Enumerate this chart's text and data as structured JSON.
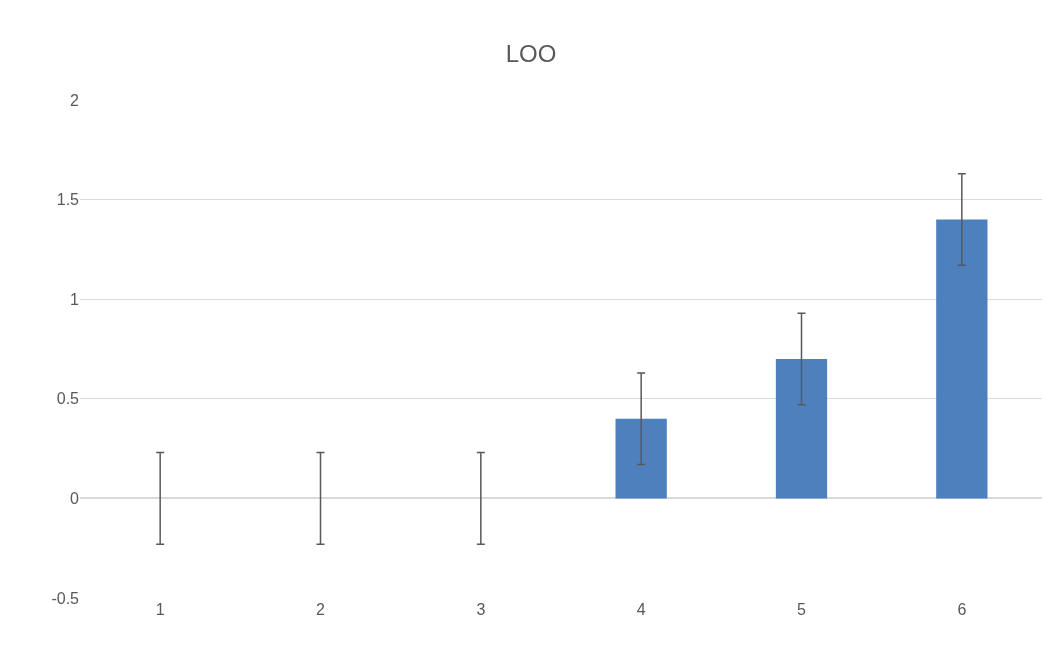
{
  "chart_data": {
    "type": "bar",
    "title": "LOO",
    "categories": [
      "1",
      "2",
      "3",
      "4",
      "5",
      "6"
    ],
    "values": [
      0,
      0,
      0,
      0.4,
      0.7,
      1.4
    ],
    "errors": [
      0.23,
      0.23,
      0.23,
      0.23,
      0.23,
      0.23
    ],
    "color": "#4e80bd",
    "ylim": [
      -0.5,
      2
    ],
    "yticks": [
      -0.5,
      0,
      0.5,
      1,
      1.5,
      2
    ],
    "grid": "y"
  }
}
